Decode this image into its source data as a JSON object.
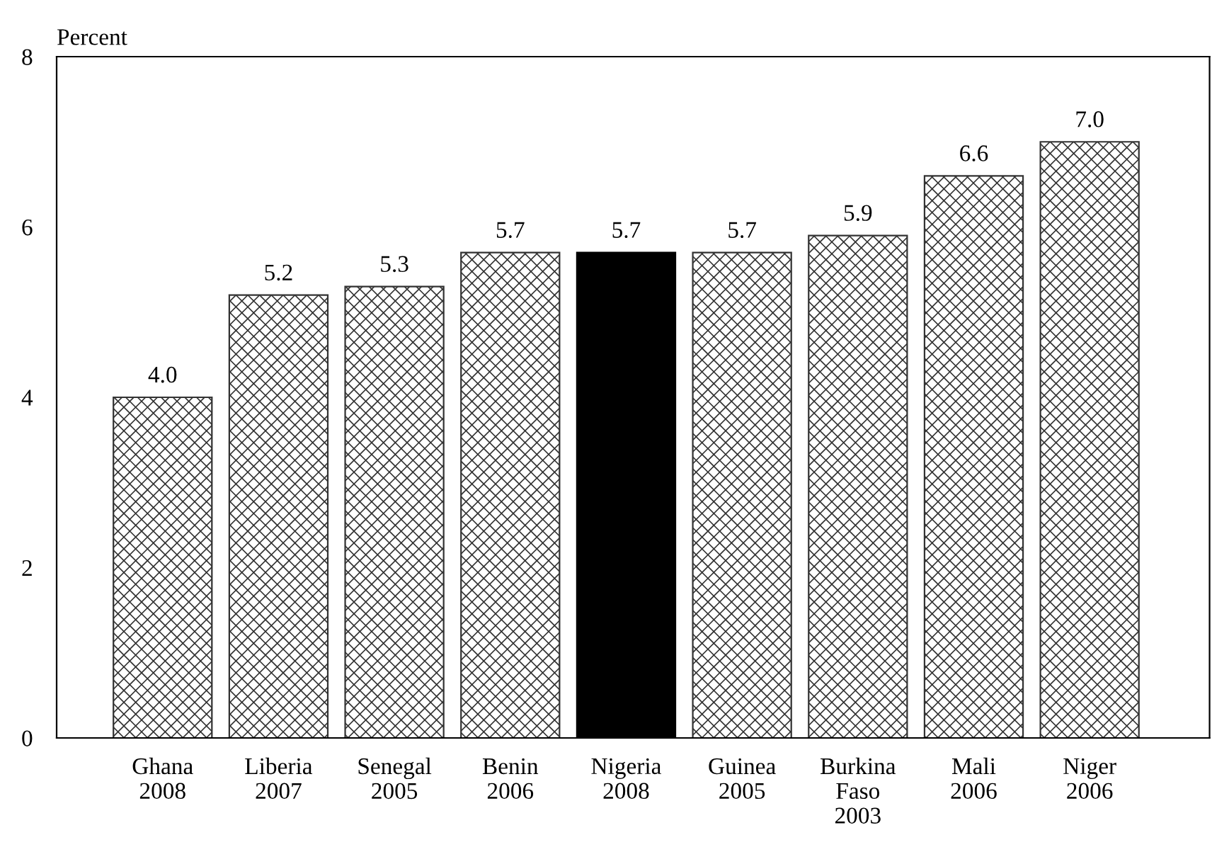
{
  "chart_data": {
    "type": "bar",
    "ylabel": "Percent",
    "categories": [
      "Ghana\n2008",
      "Liberia\n2007",
      "Senegal\n2005",
      "Benin\n2006",
      "Nigeria\n2008",
      "Guinea\n2005",
      "Burkina\nFaso\n2003",
      "Mali\n2006",
      "Niger\n2006"
    ],
    "values": [
      4.0,
      5.2,
      5.3,
      5.7,
      5.7,
      5.7,
      5.9,
      6.6,
      7.0
    ],
    "value_labels": [
      "4.0",
      "5.2",
      "5.3",
      "5.7",
      "5.7",
      "5.7",
      "5.9",
      "6.6",
      "7.0"
    ],
    "colors": [
      "#333333",
      "#333333",
      "#333333",
      "#333333",
      "#000000",
      "#333333",
      "#333333",
      "#333333",
      "#333333"
    ],
    "ylim": [
      0,
      8
    ],
    "yticks": [
      0,
      2,
      4,
      6,
      8
    ],
    "grid": false,
    "legend": false
  }
}
